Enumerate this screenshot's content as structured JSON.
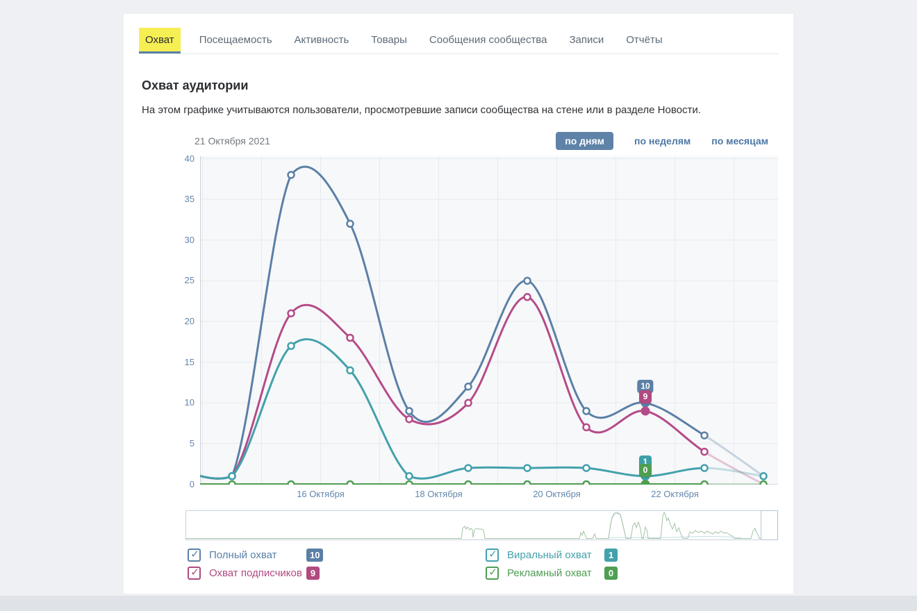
{
  "tabs": [
    {
      "label": "Охват",
      "active": true
    },
    {
      "label": "Посещаемость",
      "active": false
    },
    {
      "label": "Активность",
      "active": false
    },
    {
      "label": "Товары",
      "active": false
    },
    {
      "label": "Сообщения сообщества",
      "active": false
    },
    {
      "label": "Записи",
      "active": false
    },
    {
      "label": "Отчёты",
      "active": false
    }
  ],
  "header": {
    "title": "Охват аудитории",
    "description": "На этом графике учитываются пользователи, просмотревшие записи сообщества на стене или в разделе Новости."
  },
  "toolbar": {
    "date_label": "21 Октября 2021",
    "modes": [
      {
        "label": "по дням",
        "active": true
      },
      {
        "label": "по неделям",
        "active": false
      },
      {
        "label": "по месяцам",
        "active": false
      }
    ]
  },
  "chart_data": {
    "type": "line",
    "x": [
      "13 Октября",
      "14 Октября",
      "15 Октября",
      "16 Октября",
      "17 Октября",
      "18 Октября",
      "19 Октября",
      "20 Октября",
      "21 Октября",
      "22 Октября",
      "23 Октября"
    ],
    "x_axis_labels": [
      "16 Октября",
      "18 Октября",
      "20 Октября",
      "22 Октября"
    ],
    "y_ticks": [
      0,
      5,
      10,
      15,
      20,
      25,
      30,
      35,
      40
    ],
    "ylim": [
      0,
      40
    ],
    "grid": true,
    "series": [
      {
        "name": "Полный охват",
        "color": "#5b80a6",
        "values": [
          2,
          1,
          38,
          32,
          9,
          12,
          25,
          9,
          10,
          6,
          1
        ]
      },
      {
        "name": "Охват подписчиков",
        "color": "#b54b88",
        "values": [
          2,
          1,
          21,
          18,
          8,
          10,
          23,
          7,
          9,
          4,
          0
        ]
      },
      {
        "name": "Виральный охват",
        "color": "#43a1ab",
        "values": [
          2,
          1,
          17,
          14,
          1,
          2,
          2,
          2,
          1,
          2,
          1
        ]
      },
      {
        "name": "Рекламный охват",
        "color": "#4f9e52",
        "values": [
          0,
          0,
          0,
          0,
          0,
          0,
          0,
          0,
          0,
          0,
          0
        ]
      }
    ],
    "hover": {
      "x_index": 8,
      "date": "21 Октября 2021",
      "tooltips": [
        {
          "value": "10",
          "color": "#5b80a6"
        },
        {
          "value": "9",
          "color": "#b04a80"
        },
        {
          "value": "1",
          "color": "#3f9fa8"
        },
        {
          "value": "0",
          "color": "#4f9e52"
        }
      ]
    }
  },
  "legend": [
    {
      "label": "Полный охват",
      "value": "10",
      "color": "#5b80a6"
    },
    {
      "label": "Охват подписчиков",
      "value": "9",
      "color": "#b04a80"
    },
    {
      "label": "Виральный охват",
      "value": "1",
      "color": "#43a1ab"
    },
    {
      "label": "Рекламный охват",
      "value": "0",
      "color": "#4f9e52"
    }
  ],
  "overview": {
    "spark_color": "#a3c2a4",
    "spark_points": [
      [
        0,
        39.5
      ],
      [
        394,
        39.5
      ],
      [
        396,
        39.5
      ],
      [
        398,
        25
      ],
      [
        401,
        22
      ],
      [
        403,
        26
      ],
      [
        405,
        23
      ],
      [
        408,
        27
      ],
      [
        410,
        25
      ],
      [
        412,
        27
      ],
      [
        413,
        38
      ],
      [
        415,
        27
      ],
      [
        418,
        25
      ],
      [
        421,
        26
      ],
      [
        425,
        26
      ],
      [
        428,
        27
      ],
      [
        430,
        39.5
      ],
      [
        563,
        39.5
      ],
      [
        566,
        39.5
      ],
      [
        568,
        31
      ],
      [
        570,
        35
      ],
      [
        572,
        29
      ],
      [
        574,
        34
      ],
      [
        576,
        39.5
      ],
      [
        585,
        39.5
      ],
      [
        588,
        33
      ],
      [
        590,
        39.5
      ],
      [
        606,
        39.5
      ],
      [
        608,
        39.5
      ],
      [
        611,
        18
      ],
      [
        613,
        10
      ],
      [
        616,
        5
      ],
      [
        619,
        3
      ],
      [
        622,
        3.5
      ],
      [
        625,
        6
      ],
      [
        627,
        13
      ],
      [
        630,
        26
      ],
      [
        633,
        39.5
      ],
      [
        640,
        39.5
      ],
      [
        643,
        21
      ],
      [
        646,
        17
      ],
      [
        648,
        24
      ],
      [
        651,
        16
      ],
      [
        654,
        26
      ],
      [
        656,
        39.5
      ],
      [
        658,
        39.5
      ],
      [
        661,
        23
      ],
      [
        663,
        27
      ],
      [
        665,
        39.5
      ],
      [
        681,
        39.5
      ],
      [
        683,
        39.5
      ],
      [
        686,
        8
      ],
      [
        688,
        2
      ],
      [
        690,
        6
      ],
      [
        692,
        14
      ],
      [
        694,
        10
      ],
      [
        697,
        20
      ],
      [
        700,
        26
      ],
      [
        703,
        18
      ],
      [
        706,
        30
      ],
      [
        709,
        24
      ],
      [
        712,
        33
      ],
      [
        715,
        39.5
      ],
      [
        722,
        39.5
      ],
      [
        725,
        30
      ],
      [
        729,
        32
      ],
      [
        733,
        28
      ],
      [
        737,
        31
      ],
      [
        741,
        29
      ],
      [
        746,
        32
      ],
      [
        750,
        29
      ],
      [
        754,
        31
      ],
      [
        758,
        33
      ],
      [
        762,
        30
      ],
      [
        766,
        32
      ],
      [
        770,
        29
      ],
      [
        774,
        32
      ],
      [
        778,
        31
      ],
      [
        782,
        34
      ],
      [
        786,
        36
      ],
      [
        789,
        39.5
      ],
      [
        810,
        39.5
      ],
      [
        813,
        39.5
      ],
      [
        816,
        29
      ],
      [
        819,
        25
      ],
      [
        821,
        31
      ],
      [
        823,
        34
      ],
      [
        825,
        39.5
      ],
      [
        827,
        39.5
      ]
    ],
    "spark_secondary_color": "#bedce0",
    "spark_secondary_points": [
      [
        608,
        39
      ],
      [
        627,
        38
      ],
      [
        633,
        38.5
      ],
      [
        683,
        38.5
      ],
      [
        700,
        38
      ],
      [
        725,
        37
      ],
      [
        750,
        36.5
      ],
      [
        778,
        37
      ],
      [
        789,
        38
      ],
      [
        800,
        39
      ]
    ],
    "spark_blue_color": "#c2cfdd",
    "spark_blue_points": [
      [
        608,
        39
      ],
      [
        613,
        9
      ],
      [
        616,
        3
      ],
      [
        619,
        1.5
      ],
      [
        622,
        2.5
      ],
      [
        625,
        5
      ],
      [
        627,
        12
      ],
      [
        630,
        25
      ],
      [
        633,
        39
      ]
    ]
  }
}
